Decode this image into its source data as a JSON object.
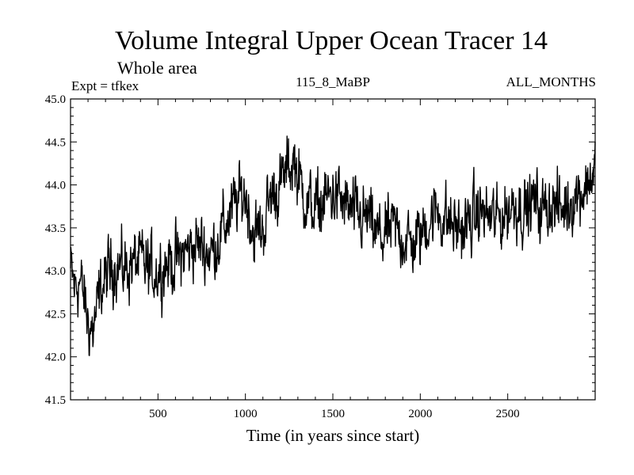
{
  "chart_data": {
    "type": "line",
    "title": "Volume Integral Upper Ocean Tracer 14",
    "subtitle": "Whole area",
    "experiment_label": "Expt = tfkex",
    "run_label": "115_8_MaBP",
    "period_label": "ALL_MONTHS",
    "xlabel": "Time (in years since start)",
    "ylabel": "",
    "xlim": [
      0,
      3000
    ],
    "ylim": [
      41.5,
      45.0
    ],
    "x_ticks": [
      500,
      1000,
      1500,
      2000,
      2500
    ],
    "x_tick_labels": [
      "500",
      "1000",
      "1500",
      "2000",
      "2500"
    ],
    "y_ticks": [
      41.5,
      42.0,
      42.5,
      43.0,
      43.5,
      44.0,
      44.5,
      45.0
    ],
    "y_tick_labels": [
      "41.5",
      "42.0",
      "42.5",
      "43.0",
      "43.5",
      "44.0",
      "44.5",
      "45.0"
    ],
    "grid": false,
    "line_color": "#000000",
    "series": [
      {
        "x": [
          0,
          25,
          50,
          75,
          100,
          125,
          150,
          175,
          200,
          250,
          300,
          350,
          400,
          450,
          500,
          550,
          600,
          650,
          700,
          750,
          800,
          850,
          900,
          950,
          1000,
          1030,
          1050,
          1100,
          1150,
          1200,
          1250,
          1280,
          1300,
          1350,
          1400,
          1450,
          1500,
          1550,
          1600,
          1650,
          1700,
          1750,
          1800,
          1850,
          1900,
          1950,
          2000,
          2050,
          2100,
          2150,
          2200,
          2250,
          2300,
          2350,
          2400,
          2450,
          2500,
          2550,
          2600,
          2650,
          2700,
          2750,
          2800,
          2850,
          2900,
          2950,
          3000
        ],
        "values": [
          43.0,
          42.8,
          42.9,
          42.7,
          42.4,
          42.3,
          42.5,
          42.8,
          42.9,
          43.1,
          43.0,
          43.1,
          43.1,
          43.0,
          43.0,
          43.1,
          43.1,
          43.2,
          43.3,
          43.3,
          43.2,
          43.4,
          43.6,
          43.8,
          43.9,
          43.6,
          43.4,
          43.5,
          43.9,
          44.0,
          44.2,
          44.3,
          44.1,
          43.8,
          43.7,
          43.8,
          43.9,
          43.8,
          43.7,
          43.6,
          43.6,
          43.4,
          43.4,
          43.5,
          43.4,
          43.3,
          43.4,
          43.6,
          43.7,
          43.6,
          43.5,
          43.5,
          43.6,
          43.7,
          43.6,
          43.6,
          43.7,
          43.8,
          43.7,
          43.8,
          43.7,
          43.8,
          43.7,
          43.8,
          43.9,
          44.0,
          44.2
        ]
      }
    ]
  }
}
